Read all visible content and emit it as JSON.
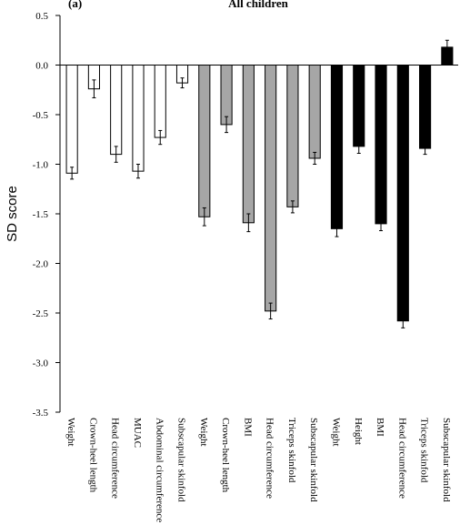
{
  "chart_data": {
    "type": "bar",
    "panel_label": "(a)",
    "title": "All children",
    "y_label": "SD score",
    "categories": [
      "Weight",
      "Crown-heel length",
      "Head circumference",
      "MUAC",
      "Abdominal circumference",
      "Subscapular skinfold",
      "Weight",
      "Crown-heel length",
      "BMI",
      "Head circumference",
      "Triceps skinfold",
      "Subscapular skinfold",
      "Weight",
      "Height",
      "BMI",
      "Head circumference",
      "Triceps skinfold",
      "Subscapular skinfold"
    ],
    "values": [
      -1.09,
      -0.24,
      -0.9,
      -1.07,
      -0.73,
      -0.18,
      -1.53,
      -0.6,
      -1.59,
      -2.48,
      -1.43,
      -0.94,
      -1.65,
      -0.82,
      -1.6,
      -2.58,
      -0.84,
      0.18
    ],
    "errors": [
      0.06,
      0.09,
      0.08,
      0.07,
      0.07,
      0.05,
      0.09,
      0.08,
      0.09,
      0.08,
      0.06,
      0.06,
      0.08,
      0.07,
      0.07,
      0.07,
      0.06,
      0.07
    ],
    "colors": [
      "#ffffff",
      "#ffffff",
      "#ffffff",
      "#ffffff",
      "#ffffff",
      "#ffffff",
      "#a6a6a6",
      "#a6a6a6",
      "#a6a6a6",
      "#a6a6a6",
      "#a6a6a6",
      "#a6a6a6",
      "#000000",
      "#000000",
      "#000000",
      "#000000",
      "#000000",
      "#000000"
    ],
    "ylim": [
      -3.5,
      0.5
    ],
    "yticks": [
      0.5,
      {
        "value": 0,
        "label": "0.0"
      },
      -0.5,
      {
        "value": -1,
        "label": "-1.0"
      },
      -1.5,
      {
        "value": -2,
        "label": "-2.0"
      },
      -2.5,
      {
        "value": -3,
        "label": "-3.0"
      },
      -3.5
    ]
  }
}
